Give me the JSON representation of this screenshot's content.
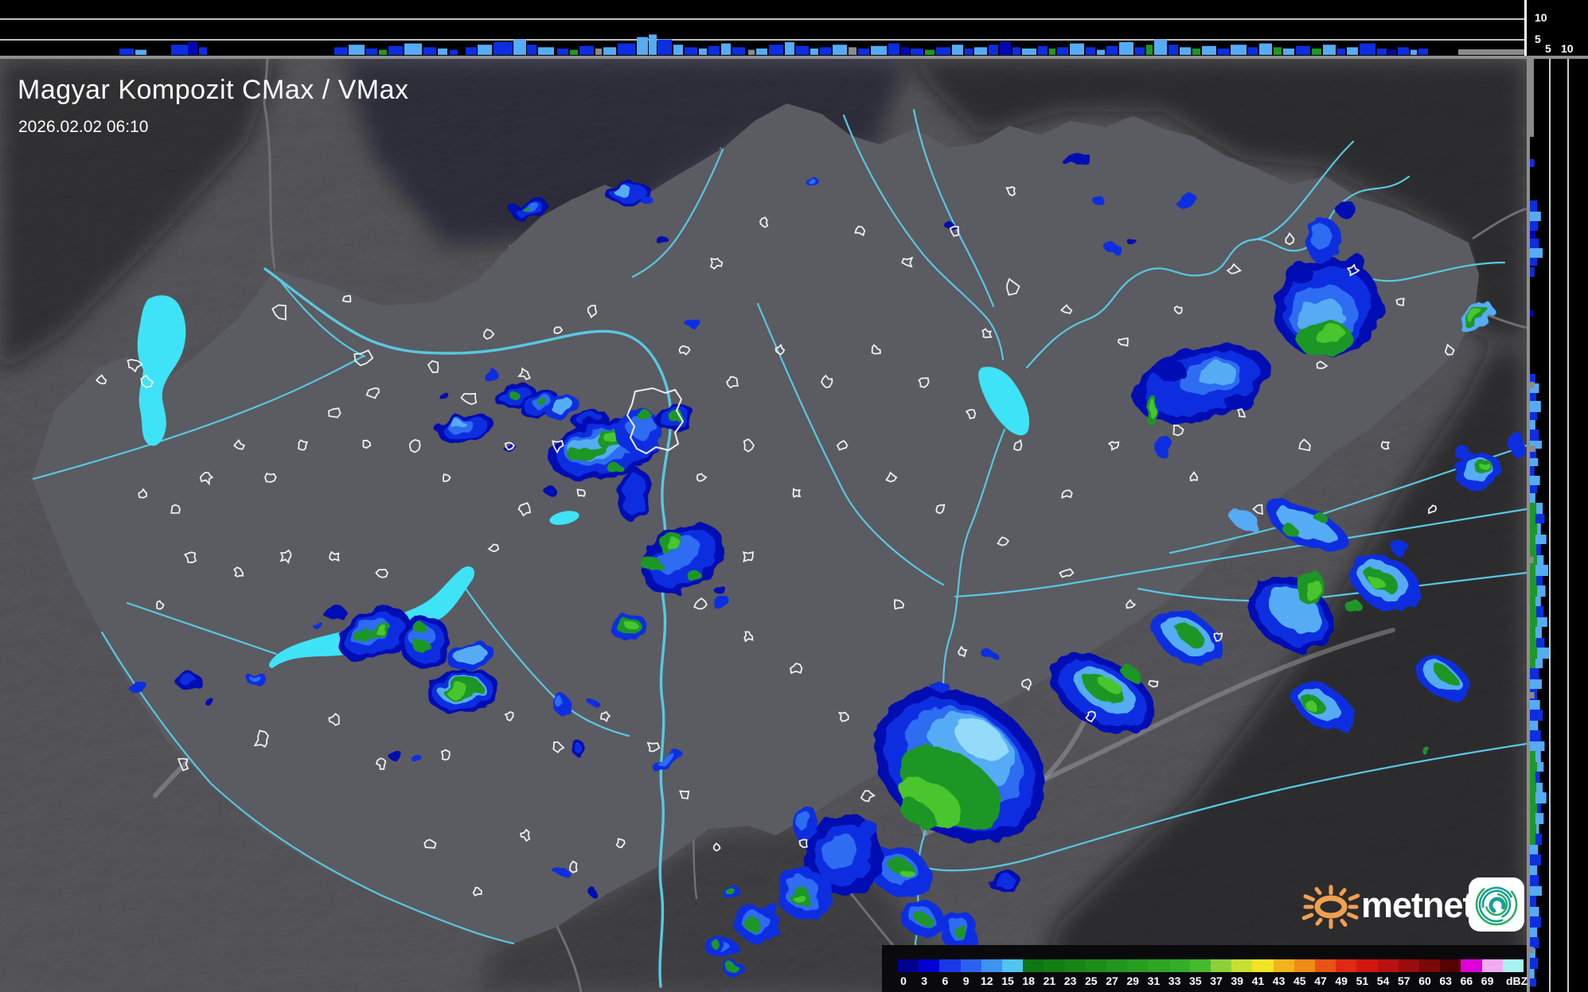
{
  "header": {
    "title": "Magyar Kompozit CMax / VMax",
    "timestamp": "2026.02.02 06:10"
  },
  "top_profile": {
    "y_labels": [
      "10",
      "5"
    ],
    "segments": [
      [
        150,
        18,
        5,
        "B"
      ],
      [
        170,
        14,
        4,
        "L"
      ],
      [
        215,
        22,
        8,
        "B"
      ],
      [
        236,
        12,
        10,
        "N"
      ],
      [
        250,
        10,
        6,
        "B"
      ],
      [
        420,
        16,
        6,
        "B"
      ],
      [
        438,
        20,
        8,
        "L"
      ],
      [
        460,
        14,
        5,
        "B"
      ],
      [
        476,
        10,
        4,
        "G"
      ],
      [
        488,
        18,
        7,
        "B"
      ],
      [
        508,
        22,
        9,
        "L"
      ],
      [
        532,
        16,
        6,
        "B"
      ],
      [
        550,
        12,
        5,
        "L"
      ],
      [
        565,
        10,
        4,
        "B"
      ],
      [
        585,
        14,
        6,
        "B"
      ],
      [
        600,
        18,
        8,
        "L"
      ],
      [
        620,
        24,
        10,
        "B"
      ],
      [
        645,
        16,
        12,
        "L"
      ],
      [
        662,
        12,
        8,
        "B"
      ],
      [
        676,
        20,
        6,
        "L"
      ],
      [
        700,
        14,
        5,
        "B"
      ],
      [
        716,
        10,
        4,
        "G"
      ],
      [
        728,
        18,
        7,
        "B"
      ],
      [
        748,
        8,
        5,
        "Y"
      ],
      [
        758,
        16,
        6,
        "L"
      ],
      [
        776,
        22,
        9,
        "B"
      ],
      [
        800,
        14,
        14,
        "L"
      ],
      [
        815,
        10,
        16,
        "L"
      ],
      [
        826,
        18,
        12,
        "B"
      ],
      [
        846,
        12,
        8,
        "L"
      ],
      [
        860,
        16,
        6,
        "B"
      ],
      [
        878,
        10,
        5,
        "L"
      ],
      [
        890,
        14,
        7,
        "B"
      ],
      [
        906,
        12,
        9,
        "L"
      ],
      [
        920,
        16,
        6,
        "B"
      ],
      [
        940,
        8,
        4,
        "Y"
      ],
      [
        950,
        14,
        5,
        "L"
      ],
      [
        966,
        18,
        8,
        "B"
      ],
      [
        986,
        12,
        10,
        "L"
      ],
      [
        1000,
        16,
        7,
        "B"
      ],
      [
        1018,
        10,
        5,
        "L"
      ],
      [
        1030,
        14,
        6,
        "B"
      ],
      [
        1046,
        18,
        8,
        "L"
      ],
      [
        1066,
        10,
        6,
        "Y"
      ],
      [
        1078,
        14,
        5,
        "B"
      ],
      [
        1094,
        20,
        7,
        "L"
      ],
      [
        1116,
        14,
        9,
        "B"
      ],
      [
        1132,
        10,
        6,
        "N"
      ],
      [
        1144,
        16,
        5,
        "B"
      ],
      [
        1162,
        12,
        4,
        "G"
      ],
      [
        1176,
        18,
        6,
        "B"
      ],
      [
        1196,
        14,
        8,
        "L"
      ],
      [
        1212,
        10,
        5,
        "B"
      ],
      [
        1224,
        16,
        6,
        "L"
      ],
      [
        1242,
        12,
        8,
        "B"
      ],
      [
        1256,
        14,
        10,
        "N"
      ],
      [
        1272,
        10,
        6,
        "B"
      ],
      [
        1284,
        18,
        5,
        "L"
      ],
      [
        1304,
        12,
        7,
        "B"
      ],
      [
        1318,
        8,
        5,
        "G"
      ],
      [
        1328,
        14,
        6,
        "B"
      ],
      [
        1344,
        18,
        9,
        "L"
      ],
      [
        1364,
        12,
        6,
        "B"
      ],
      [
        1378,
        10,
        4,
        "L"
      ],
      [
        1390,
        14,
        7,
        "B"
      ],
      [
        1406,
        18,
        10,
        "L"
      ],
      [
        1426,
        12,
        6,
        "B"
      ],
      [
        1440,
        8,
        8,
        "G"
      ],
      [
        1450,
        16,
        12,
        "L"
      ],
      [
        1468,
        12,
        8,
        "B"
      ],
      [
        1482,
        14,
        6,
        "L"
      ],
      [
        1498,
        10,
        5,
        "G"
      ],
      [
        1510,
        18,
        7,
        "L"
      ],
      [
        1530,
        14,
        5,
        "B"
      ],
      [
        1546,
        20,
        8,
        "L"
      ],
      [
        1568,
        12,
        6,
        "B"
      ],
      [
        1582,
        16,
        9,
        "L"
      ],
      [
        1600,
        10,
        6,
        "G"
      ],
      [
        1612,
        14,
        5,
        "L"
      ],
      [
        1628,
        18,
        7,
        "B"
      ],
      [
        1648,
        12,
        5,
        "G"
      ],
      [
        1662,
        16,
        8,
        "L"
      ],
      [
        1680,
        10,
        5,
        "B"
      ],
      [
        1692,
        14,
        6,
        "L"
      ],
      [
        1708,
        20,
        9,
        "B"
      ],
      [
        1730,
        12,
        5,
        "B"
      ],
      [
        1744,
        10,
        4,
        "N"
      ],
      [
        1756,
        14,
        6,
        "B"
      ],
      [
        1772,
        8,
        4,
        "L"
      ],
      [
        1782,
        12,
        5,
        "B"
      ],
      [
        1850,
        10,
        4,
        "N"
      ],
      [
        1862,
        8,
        3,
        "B"
      ]
    ],
    "gray_bar": [
      1832,
      86,
      7
    ]
  },
  "right_profile": {
    "x_labels": [
      "5",
      "10"
    ],
    "segments": [
      [
        200,
        10,
        5,
        "B"
      ],
      [
        252,
        14,
        8,
        "B"
      ],
      [
        266,
        12,
        12,
        "L"
      ],
      [
        278,
        12,
        9,
        "B"
      ],
      [
        290,
        10,
        6,
        "N"
      ],
      [
        300,
        12,
        10,
        "B"
      ],
      [
        312,
        12,
        14,
        "L"
      ],
      [
        324,
        10,
        8,
        "B"
      ],
      [
        336,
        12,
        5,
        "B"
      ],
      [
        390,
        8,
        4,
        "N"
      ],
      [
        470,
        12,
        6,
        "B"
      ],
      [
        482,
        12,
        10,
        "L"
      ],
      [
        494,
        10,
        7,
        "B"
      ],
      [
        504,
        14,
        12,
        "L"
      ],
      [
        518,
        10,
        8,
        "B"
      ],
      [
        528,
        12,
        6,
        "L"
      ],
      [
        540,
        14,
        10,
        "B"
      ],
      [
        554,
        10,
        13,
        "L"
      ],
      [
        564,
        12,
        7,
        "B"
      ],
      [
        576,
        10,
        9,
        "L"
      ],
      [
        586,
        12,
        5,
        "B"
      ],
      [
        598,
        12,
        11,
        "L"
      ],
      [
        610,
        10,
        8,
        "B"
      ],
      [
        620,
        12,
        6,
        "L"
      ],
      [
        632,
        14,
        14,
        "L"
      ],
      [
        632,
        14,
        7,
        "G"
      ],
      [
        646,
        12,
        16,
        "B"
      ],
      [
        646,
        12,
        6,
        "G"
      ],
      [
        658,
        14,
        12,
        "L"
      ],
      [
        658,
        14,
        8,
        "G"
      ],
      [
        672,
        12,
        18,
        "L"
      ],
      [
        672,
        12,
        6,
        "G"
      ],
      [
        684,
        14,
        12,
        "B"
      ],
      [
        684,
        14,
        7,
        "G"
      ],
      [
        698,
        12,
        15,
        "L"
      ],
      [
        698,
        12,
        8,
        "G"
      ],
      [
        710,
        14,
        20,
        "L"
      ],
      [
        710,
        14,
        6,
        "G"
      ],
      [
        724,
        12,
        14,
        "B"
      ],
      [
        724,
        12,
        7,
        "G"
      ],
      [
        736,
        14,
        17,
        "L"
      ],
      [
        736,
        14,
        8,
        "G"
      ],
      [
        750,
        12,
        12,
        "L"
      ],
      [
        750,
        12,
        6,
        "G"
      ],
      [
        762,
        14,
        15,
        "B"
      ],
      [
        762,
        14,
        7,
        "G"
      ],
      [
        776,
        12,
        19,
        "L"
      ],
      [
        776,
        12,
        8,
        "G"
      ],
      [
        788,
        14,
        13,
        "L"
      ],
      [
        788,
        14,
        6,
        "G"
      ],
      [
        802,
        12,
        16,
        "B"
      ],
      [
        802,
        12,
        7,
        "G"
      ],
      [
        814,
        14,
        21,
        "L"
      ],
      [
        814,
        14,
        8,
        "G"
      ],
      [
        828,
        12,
        14,
        "L"
      ],
      [
        828,
        12,
        6,
        "G"
      ],
      [
        840,
        14,
        10,
        "B"
      ],
      [
        854,
        12,
        13,
        "L"
      ],
      [
        866,
        14,
        8,
        "B"
      ],
      [
        880,
        12,
        11,
        "L"
      ],
      [
        892,
        14,
        14,
        "B"
      ],
      [
        906,
        12,
        9,
        "L"
      ],
      [
        918,
        14,
        12,
        "B"
      ],
      [
        932,
        12,
        16,
        "L"
      ],
      [
        944,
        14,
        12,
        "L"
      ],
      [
        944,
        14,
        6,
        "G"
      ],
      [
        958,
        12,
        15,
        "L"
      ],
      [
        958,
        12,
        8,
        "G"
      ],
      [
        970,
        14,
        11,
        "B"
      ],
      [
        970,
        14,
        6,
        "G"
      ],
      [
        984,
        12,
        14,
        "L"
      ],
      [
        984,
        12,
        7,
        "G"
      ],
      [
        996,
        14,
        18,
        "L"
      ],
      [
        996,
        14,
        6,
        "G"
      ],
      [
        1010,
        12,
        12,
        "B"
      ],
      [
        1010,
        12,
        8,
        "G"
      ],
      [
        1022,
        14,
        15,
        "L"
      ],
      [
        1022,
        14,
        6,
        "G"
      ],
      [
        1036,
        12,
        10,
        "L"
      ],
      [
        1036,
        12,
        7,
        "G"
      ],
      [
        1048,
        14,
        13,
        "B"
      ],
      [
        1048,
        14,
        6,
        "G"
      ],
      [
        1062,
        12,
        9,
        "L"
      ],
      [
        1074,
        14,
        12,
        "B"
      ],
      [
        1088,
        12,
        8,
        "L"
      ],
      [
        1100,
        14,
        10,
        "B"
      ],
      [
        1114,
        12,
        13,
        "L"
      ],
      [
        1126,
        14,
        7,
        "B"
      ],
      [
        1140,
        12,
        10,
        "L"
      ],
      [
        1152,
        14,
        12,
        "B"
      ],
      [
        1166,
        12,
        8,
        "L"
      ],
      [
        1178,
        14,
        10,
        "B"
      ],
      [
        1192,
        12,
        6,
        "L"
      ],
      [
        1204,
        14,
        9,
        "B"
      ],
      [
        1218,
        12,
        5,
        "L"
      ],
      [
        1230,
        10,
        7,
        "B"
      ],
      [
        480,
        8,
        5,
        "Y"
      ],
      [
        560,
        8,
        6,
        "Y"
      ],
      [
        700,
        8,
        4,
        "Y"
      ],
      [
        870,
        8,
        5,
        "Y"
      ],
      [
        1190,
        8,
        4,
        "Y"
      ]
    ],
    "gray_bar": [
      72,
      100,
      5
    ]
  },
  "legend": {
    "values": [
      "0",
      "3",
      "6",
      "9",
      "12",
      "15",
      "18",
      "21",
      "23",
      "25",
      "27",
      "29",
      "31",
      "33",
      "35",
      "37",
      "39",
      "41",
      "43",
      "45",
      "47",
      "49",
      "51",
      "54",
      "57",
      "60",
      "63",
      "66",
      "69"
    ],
    "unit": "dBZ",
    "colors": [
      "#00008e",
      "#0000d2",
      "#1a38e6",
      "#2a62ee",
      "#3e92f0",
      "#52c4f2",
      "#0e7612",
      "#137e14",
      "#188617",
      "#1d8e1a",
      "#22961d",
      "#279e20",
      "#2ca623",
      "#32ae27",
      "#46ba2e",
      "#8ed038",
      "#c8df36",
      "#f2e426",
      "#f2b41e",
      "#ef8c18",
      "#e85415",
      "#e02a12",
      "#d31710",
      "#b81210",
      "#9a0d0c",
      "#7c0808",
      "#540303",
      "#dd00dd",
      "#f2aaf2"
    ],
    "overflow_color": "#aaf2f2"
  },
  "palette": {
    "N": "#0007b2",
    "B": "#0c2ee0",
    "M": "#2e6cf2",
    "L": "#55acf5",
    "P": "#93dbf8",
    "G": "#1f9727",
    "H": "#49c52f",
    "Y": "#8a8a8a"
  },
  "map_colors": {
    "water": "#3fe3f7",
    "river": "#58c8e2",
    "country_border": "#9b9b9b",
    "county_border": "#74747a",
    "road": "#9a9aa0",
    "city_outline": "#f0f0f0"
  },
  "logo": {
    "text": "metnet",
    "sun_color": "#f0a050",
    "spiral_colors": [
      "#16a096",
      "#2eac62"
    ]
  }
}
